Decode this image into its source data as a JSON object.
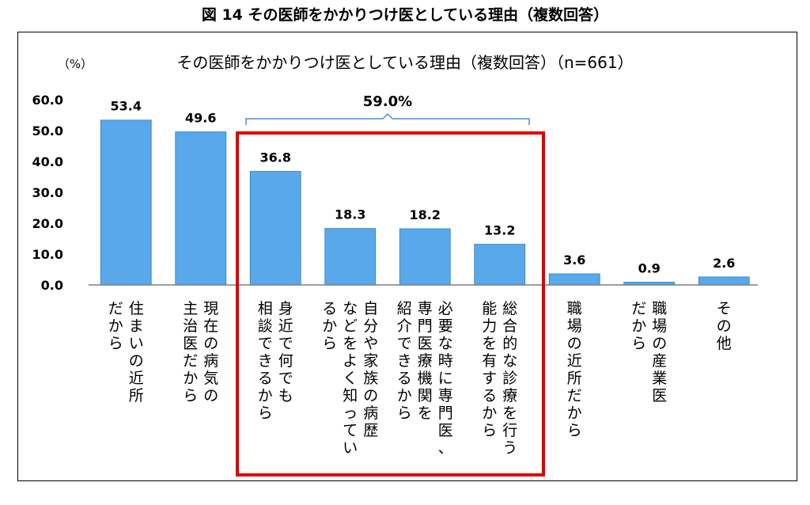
{
  "figure_title": "図 14 その医師をかかりつけ医としている理由（複数回答）",
  "chart_data": {
    "type": "bar",
    "title": "その医師をかかりつけ医としている理由（複数回答）（n=661）",
    "ylabel": "（%）",
    "ylim": [
      0,
      60
    ],
    "y_ticks": [
      "0.0",
      "10.0",
      "20.0",
      "30.0",
      "40.0",
      "50.0",
      "60.0"
    ],
    "categories": [
      [
        "住まいの近所",
        "だから"
      ],
      [
        "現在の病気の",
        "主治医だから"
      ],
      [
        "身近で何でも",
        "相談できるから"
      ],
      [
        "自分や家族の病歴",
        "などをよく知ってい",
        "るから"
      ],
      [
        "必要な時に専門医、",
        "専門医療機関を",
        "紹介できるから"
      ],
      [
        "総合的な診療を行う",
        "能力を有するから"
      ],
      [
        "職場の近所だから"
      ],
      [
        "職場の産業医",
        "だから"
      ],
      [
        "その他"
      ]
    ],
    "values": [
      53.4,
      49.6,
      36.8,
      18.3,
      18.2,
      13.2,
      3.6,
      0.9,
      2.6
    ],
    "value_labels": [
      "53.4",
      "49.6",
      "36.8",
      "18.3",
      "18.2",
      "13.2",
      "3.6",
      "0.9",
      "2.6"
    ],
    "bracket_label": "59.0%",
    "bar_color": "#58a8ea",
    "highlight_color": "#e00000",
    "grid": false
  }
}
